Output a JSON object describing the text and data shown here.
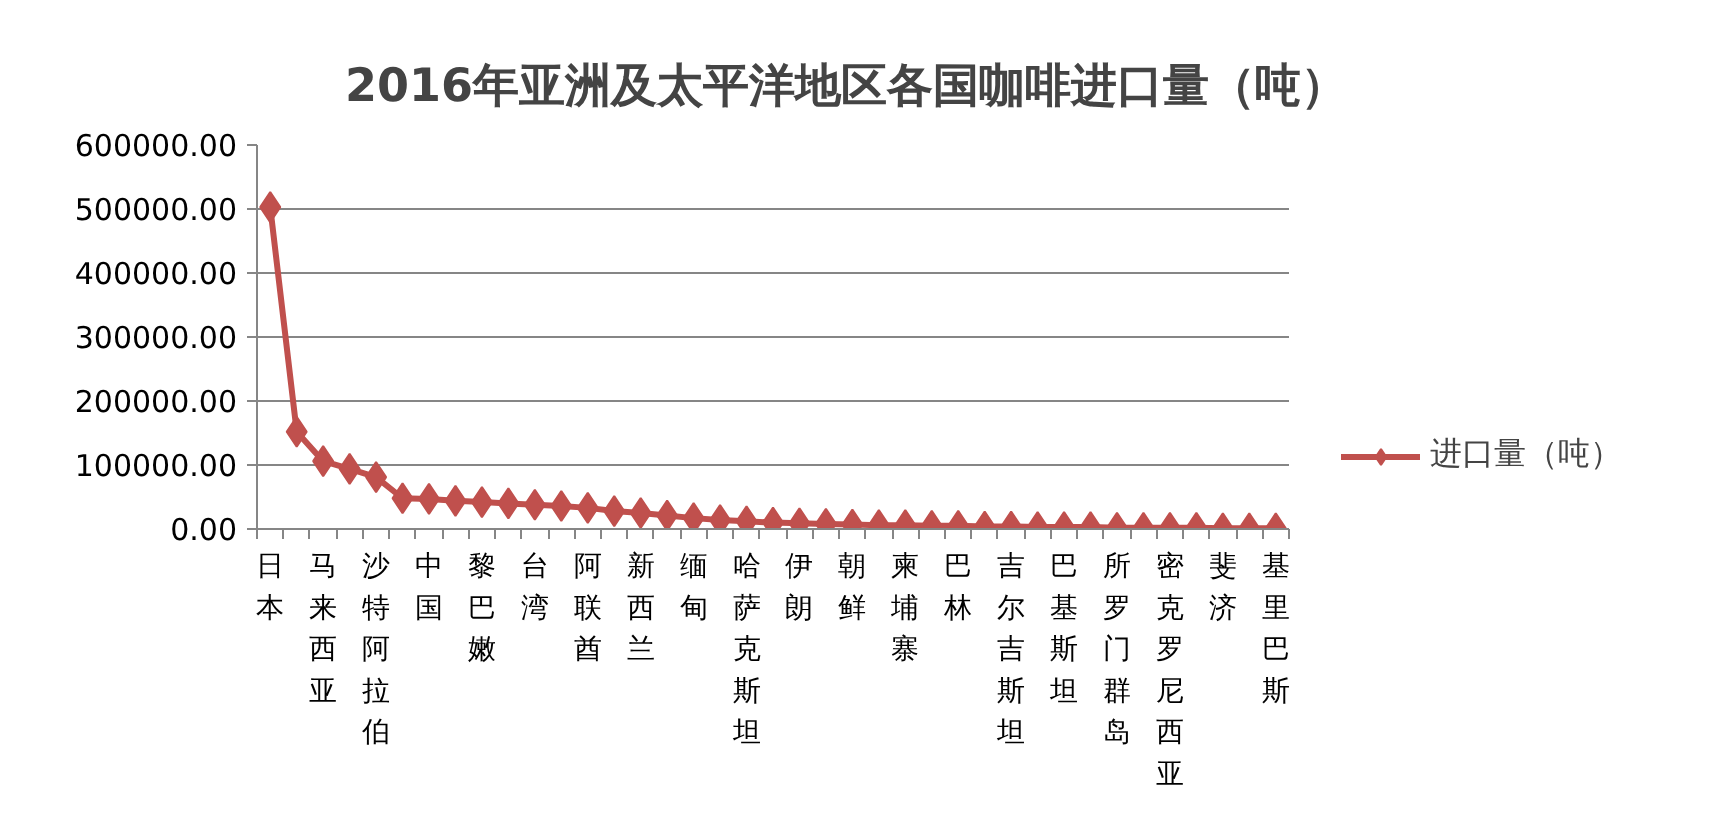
{
  "chart_data": {
    "type": "line",
    "title": "2016年亚洲及太平洋地区各国咖啡进口量（吨）",
    "categories": [
      "日本",
      null,
      "马来西亚",
      null,
      "沙特阿拉伯",
      null,
      "中国",
      null,
      "黎巴嫩",
      null,
      "台湾",
      null,
      "阿联酋",
      null,
      "新西兰",
      null,
      "缅甸",
      null,
      "哈萨克斯坦",
      null,
      "伊朗",
      null,
      "朝鲜",
      null,
      "柬埔寨",
      null,
      "巴林",
      null,
      "吉尔吉斯坦",
      null,
      "巴基斯坦",
      null,
      "所罗门群岛",
      null,
      "密克罗尼西亚",
      null,
      "斐济",
      null,
      "基里巴斯"
    ],
    "series": [
      {
        "name": "进口量（吨）",
        "color": "#c0504d",
        "values": [
          503000,
          152000,
          106000,
          94000,
          81000,
          48000,
          47000,
          44000,
          42000,
          40000,
          38000,
          36000,
          33000,
          28000,
          25000,
          21000,
          17000,
          14000,
          12000,
          10000,
          9000,
          8000,
          7000,
          6000,
          6000,
          5000,
          5000,
          4000,
          4000,
          3000,
          3000,
          3000,
          2000,
          2000,
          2000,
          2000,
          1000,
          1000,
          1000
        ]
      }
    ],
    "ylim": [
      0,
      600000
    ],
    "yticks": [
      {
        "value": 0,
        "label": "0.00"
      },
      {
        "value": 100000,
        "label": "100000.00"
      },
      {
        "value": 200000,
        "label": "200000.00"
      },
      {
        "value": 300000,
        "label": "300000.00"
      },
      {
        "value": 400000,
        "label": "400000.00"
      },
      {
        "value": 500000,
        "label": "500000.00"
      },
      {
        "value": 600000,
        "label": "600000.00"
      }
    ],
    "grid": "y",
    "legend": "right",
    "marker": "diamond",
    "line_style": "solid"
  }
}
